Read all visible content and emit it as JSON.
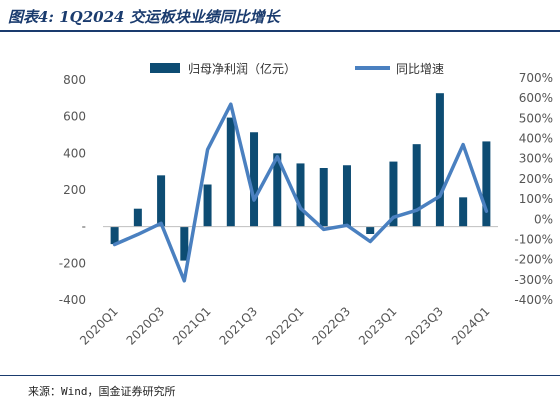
{
  "header": {
    "title": "图表4: 1Q2024 交运板块业绩同比增长"
  },
  "footer": {
    "source": "来源：Wind，国金证券研究所"
  },
  "colors": {
    "bar": "#0d4c73",
    "line": "#4a80c0",
    "title": "#1a3b6e"
  },
  "chart_data": {
    "type": "bar",
    "title": "",
    "categories": [
      "2020Q1",
      "2020Q2",
      "2020Q3",
      "2020Q4",
      "2021Q1",
      "2021Q2",
      "2021Q3",
      "2021Q4",
      "2022Q1",
      "2022Q2",
      "2022Q3",
      "2022Q4",
      "2023Q1",
      "2023Q2",
      "2023Q3",
      "2023Q4",
      "2024Q1"
    ],
    "x_tick_labels": [
      "2020Q1",
      "2020Q3",
      "2021Q1",
      "2021Q3",
      "2022Q1",
      "2022Q3",
      "2023Q1",
      "2023Q3",
      "2024Q1"
    ],
    "series": [
      {
        "name": "归母净利润（亿元）",
        "type": "bar",
        "axis": "left",
        "values": [
          -95,
          98,
          280,
          -185,
          230,
          595,
          515,
          400,
          345,
          320,
          335,
          -40,
          355,
          450,
          728,
          160,
          465
        ]
      },
      {
        "name": "同比增速",
        "type": "line",
        "axis": "right",
        "values": [
          -125,
          -75,
          -20,
          -305,
          345,
          570,
          95,
          310,
          55,
          -50,
          -30,
          -110,
          10,
          45,
          115,
          370,
          40
        ]
      }
    ],
    "y_left": {
      "lim": [
        -400,
        800
      ],
      "ticks": [
        -400,
        -200,
        0,
        200,
        400,
        600,
        800
      ],
      "tick_labels": [
        "-400",
        "-200",
        "-",
        "200",
        "400",
        "600",
        "800"
      ]
    },
    "y_right": {
      "lim": [
        -400,
        700
      ],
      "ticks": [
        -400,
        -300,
        -200,
        -100,
        0,
        100,
        200,
        300,
        400,
        500,
        600,
        700
      ],
      "tick_labels": [
        "-400%",
        "-300%",
        "-200%",
        "-100%",
        "0%",
        "100%",
        "200%",
        "300%",
        "400%",
        "500%",
        "600%",
        "700%"
      ]
    },
    "legend": {
      "placement": "top",
      "items": [
        "归母净利润（亿元）",
        "同比增速"
      ]
    },
    "grid": false
  }
}
